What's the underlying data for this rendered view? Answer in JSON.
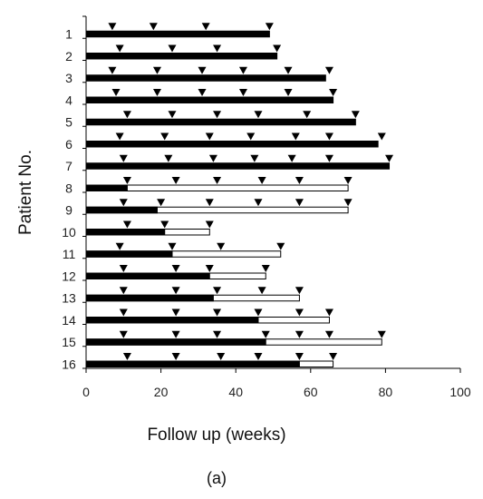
{
  "chart_data": {
    "type": "bar",
    "orientation": "horizontal",
    "xlabel": "Follow up (weeks)",
    "ylabel": "Patient No.",
    "caption": "(a)",
    "xlim": [
      0,
      100
    ],
    "x_ticks": [
      0,
      20,
      40,
      60,
      80,
      100
    ],
    "grid": false,
    "legend": "none",
    "colors": {
      "filled": "#000000",
      "open": "#ffffff",
      "marker": "#000000"
    },
    "patients": [
      {
        "label": "1",
        "filled": 49,
        "total": 49,
        "markers": [
          7,
          18,
          32,
          49
        ]
      },
      {
        "label": "2",
        "filled": 51,
        "total": 51,
        "markers": [
          9,
          23,
          35,
          51
        ]
      },
      {
        "label": "3",
        "filled": 64,
        "total": 64,
        "markers": [
          7,
          19,
          31,
          42,
          54,
          65
        ]
      },
      {
        "label": "4",
        "filled": 66,
        "total": 66,
        "markers": [
          8,
          19,
          31,
          42,
          54,
          66
        ]
      },
      {
        "label": "5",
        "filled": 72,
        "total": 72,
        "markers": [
          11,
          23,
          35,
          46,
          59,
          72
        ]
      },
      {
        "label": "6",
        "filled": 78,
        "total": 78,
        "markers": [
          9,
          21,
          33,
          44,
          56,
          65,
          79
        ]
      },
      {
        "label": "7",
        "filled": 81,
        "total": 81,
        "markers": [
          10,
          22,
          34,
          45,
          55,
          65,
          81
        ]
      },
      {
        "label": "8",
        "filled": 11,
        "total": 70,
        "markers": [
          11,
          24,
          35,
          47,
          57,
          70
        ]
      },
      {
        "label": "9",
        "filled": 19,
        "total": 70,
        "markers": [
          10,
          20,
          33,
          46,
          57,
          70
        ]
      },
      {
        "label": "10",
        "filled": 21,
        "total": 33,
        "markers": [
          11,
          21,
          33
        ]
      },
      {
        "label": "11",
        "filled": 23,
        "total": 52,
        "markers": [
          9,
          23,
          36,
          52
        ]
      },
      {
        "label": "12",
        "filled": 33,
        "total": 48,
        "markers": [
          10,
          24,
          33,
          48
        ]
      },
      {
        "label": "13",
        "filled": 34,
        "total": 57,
        "markers": [
          10,
          24,
          35,
          47,
          57
        ]
      },
      {
        "label": "14",
        "filled": 46,
        "total": 65,
        "markers": [
          10,
          24,
          35,
          46,
          57,
          65
        ]
      },
      {
        "label": "15",
        "filled": 48,
        "total": 79,
        "markers": [
          10,
          24,
          35,
          48,
          57,
          65,
          79
        ]
      },
      {
        "label": "16",
        "filled": 57,
        "total": 66,
        "markers": [
          11,
          24,
          36,
          46,
          57,
          66
        ]
      }
    ]
  }
}
